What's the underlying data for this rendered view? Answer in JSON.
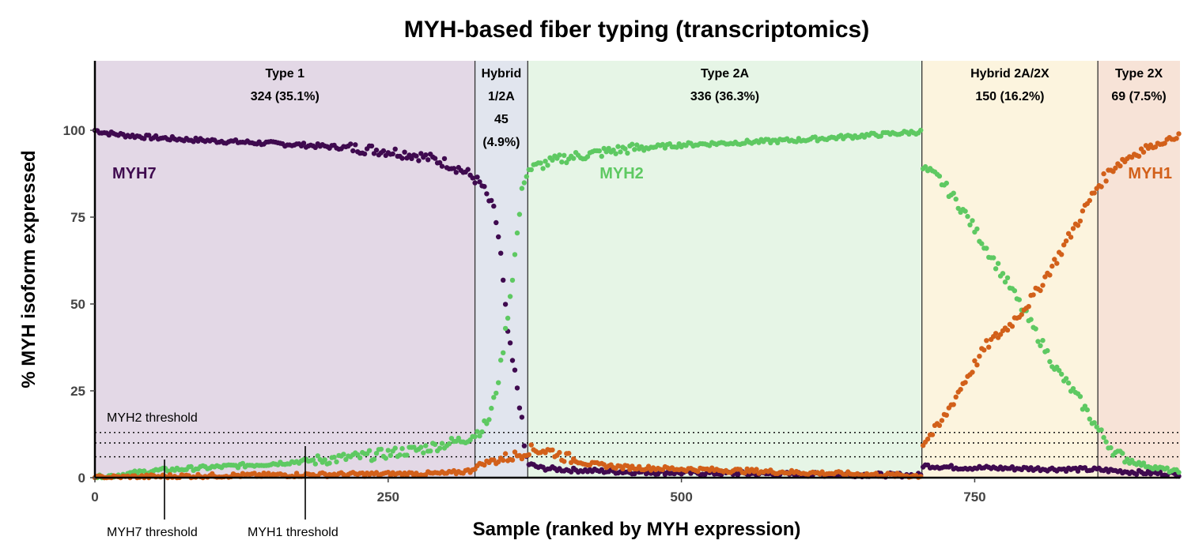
{
  "chart_data": {
    "type": "scatter",
    "title": "MYH-based fiber typing (transcriptomics)",
    "xlabel": "Sample (ranked by MYH expression)",
    "ylabel": "% MYH isoform expressed",
    "xlim": [
      0,
      925
    ],
    "ylim": [
      0,
      100
    ],
    "x_ticks": [
      0,
      250,
      500,
      750
    ],
    "y_ticks": [
      0,
      25,
      50,
      75,
      100
    ],
    "colors": {
      "MYH7": "#3f0a4f",
      "MYH2": "#5ec962",
      "MYH1": "#d2601a"
    },
    "regions": [
      {
        "lines": [
          "Type 1",
          "324 (35.1%)"
        ],
        "start": 0,
        "end": 324,
        "color": "#e3d8e6"
      },
      {
        "lines": [
          "Hybrid",
          "1/2A",
          "45",
          "(4.9%)"
        ],
        "start": 324,
        "end": 369,
        "color": "#e1e5ee"
      },
      {
        "lines": [
          "Type 2A",
          "336 (36.3%)"
        ],
        "start": 369,
        "end": 705,
        "color": "#e6f5e6"
      },
      {
        "lines": [
          "Hybrid 2A/2X",
          "150 (16.2%)"
        ],
        "start": 705,
        "end": 855,
        "color": "#fcf4de"
      },
      {
        "lines": [
          "Type 2X",
          "69 (7.5%)"
        ],
        "start": 855,
        "end": 925,
        "color": "#f7e3d7"
      }
    ],
    "series_labels": [
      {
        "text": "MYH7",
        "series": "MYH7"
      },
      {
        "text": "MYH2",
        "series": "MYH2"
      },
      {
        "text": "MYH1",
        "series": "MYH1"
      }
    ],
    "thresholds": [
      {
        "name": "MYH2 threshold",
        "value": 13
      },
      {
        "name": "MYH7 threshold",
        "value": 10
      },
      {
        "name": "MYH1 threshold",
        "value": 6
      }
    ],
    "series": [
      {
        "name": "MYH7",
        "samples": [
          [
            0,
            100
          ],
          [
            10,
            99.2
          ],
          [
            25,
            98.6
          ],
          [
            50,
            97.9
          ],
          [
            75,
            97.4
          ],
          [
            100,
            97
          ],
          [
            125,
            96.6
          ],
          [
            150,
            96.2
          ],
          [
            175,
            95.8
          ],
          [
            200,
            95.3
          ],
          [
            225,
            94.8
          ],
          [
            250,
            94
          ],
          [
            275,
            92.8
          ],
          [
            290,
            91.5
          ],
          [
            300,
            90.5
          ],
          [
            310,
            89
          ],
          [
            318,
            87.5
          ],
          [
            324,
            86
          ],
          [
            330,
            84
          ],
          [
            335,
            80.5
          ],
          [
            340,
            77
          ],
          [
            343,
            72
          ],
          [
            346,
            64
          ],
          [
            349,
            52
          ],
          [
            352,
            42
          ],
          [
            355,
            35
          ],
          [
            358,
            30
          ],
          [
            361,
            24
          ],
          [
            364,
            16
          ],
          [
            366,
            9
          ],
          [
            369,
            4
          ],
          [
            380,
            2.8
          ],
          [
            400,
            2.3
          ],
          [
            450,
            1.7
          ],
          [
            500,
            1.4
          ],
          [
            600,
            1
          ],
          [
            705,
            0.7
          ],
          [
            706,
            3.5
          ],
          [
            730,
            3
          ],
          [
            760,
            2.8
          ],
          [
            800,
            2.6
          ],
          [
            855,
            2.3
          ],
          [
            890,
            1.5
          ],
          [
            925,
            1
          ]
        ]
      },
      {
        "name": "MYH2",
        "samples": [
          [
            0,
            0
          ],
          [
            25,
            1
          ],
          [
            50,
            2
          ],
          [
            75,
            2.5
          ],
          [
            100,
            3
          ],
          [
            125,
            3.5
          ],
          [
            150,
            4
          ],
          [
            175,
            4.7
          ],
          [
            200,
            5.3
          ],
          [
            225,
            6
          ],
          [
            250,
            7
          ],
          [
            275,
            8
          ],
          [
            300,
            9.8
          ],
          [
            315,
            11
          ],
          [
            324,
            12.5
          ],
          [
            330,
            14
          ],
          [
            336,
            17
          ],
          [
            340,
            22
          ],
          [
            345,
            30
          ],
          [
            350,
            42
          ],
          [
            355,
            55
          ],
          [
            360,
            70
          ],
          [
            365,
            85
          ],
          [
            369,
            88.5
          ],
          [
            380,
            90
          ],
          [
            400,
            92
          ],
          [
            450,
            94.5
          ],
          [
            500,
            95.8
          ],
          [
            600,
            97.2
          ],
          [
            705,
            99.6
          ],
          [
            706,
            89
          ],
          [
            720,
            86
          ],
          [
            740,
            77
          ],
          [
            760,
            66
          ],
          [
            780,
            55
          ],
          [
            800,
            43
          ],
          [
            820,
            31
          ],
          [
            840,
            22
          ],
          [
            855,
            14
          ],
          [
            870,
            7
          ],
          [
            890,
            4
          ],
          [
            910,
            2.5
          ],
          [
            925,
            1.5
          ]
        ]
      },
      {
        "name": "MYH1",
        "samples": [
          [
            0,
            0
          ],
          [
            100,
            0.6
          ],
          [
            200,
            0.9
          ],
          [
            300,
            1.2
          ],
          [
            320,
            2
          ],
          [
            324,
            3
          ],
          [
            330,
            4
          ],
          [
            340,
            5
          ],
          [
            355,
            6
          ],
          [
            365,
            7
          ],
          [
            369,
            8
          ],
          [
            380,
            8
          ],
          [
            390,
            7.5
          ],
          [
            400,
            6
          ],
          [
            420,
            4
          ],
          [
            450,
            3
          ],
          [
            500,
            2.5
          ],
          [
            600,
            1.5
          ],
          [
            705,
            0.5
          ],
          [
            706,
            10
          ],
          [
            720,
            15
          ],
          [
            740,
            27
          ],
          [
            760,
            38
          ],
          [
            780,
            44
          ],
          [
            800,
            52
          ],
          [
            820,
            63
          ],
          [
            840,
            75
          ],
          [
            855,
            84
          ],
          [
            870,
            90
          ],
          [
            890,
            94
          ],
          [
            910,
            96.5
          ],
          [
            925,
            98.6
          ]
        ]
      }
    ]
  }
}
